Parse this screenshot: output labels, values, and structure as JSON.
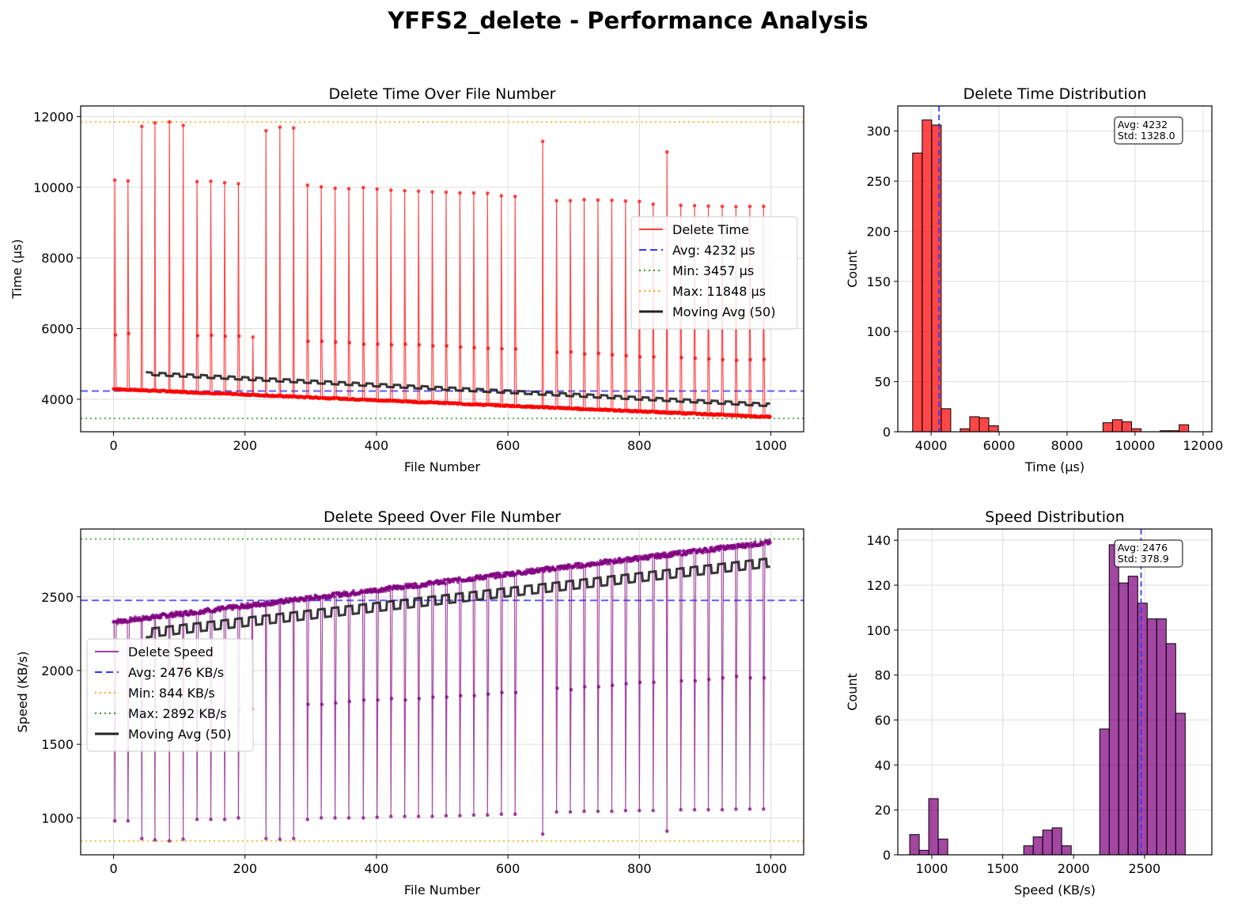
{
  "figure": {
    "title": "YFFS2_delete - Performance Analysis"
  },
  "chart_data": [
    {
      "type": "line",
      "title": "Delete Time Over File Number",
      "xlabel": "File Number",
      "ylabel": "Time (µs)",
      "xlim": [
        -50,
        1050
      ],
      "ylim": [
        3080,
        12300
      ],
      "xticks": [
        0,
        200,
        400,
        600,
        800,
        1000
      ],
      "yticks": [
        4000,
        6000,
        8000,
        10000,
        12000
      ],
      "grid": true,
      "legend_position": "center-right",
      "series": [
        {
          "name": "Delete Time",
          "color": "#ff0000",
          "baseline_start": 4290,
          "baseline_end": 3500,
          "spike_files": [
            2,
            22,
            43,
            63,
            85,
            106,
            127,
            148,
            169,
            190,
            211,
            232,
            253,
            274,
            295,
            316,
            337,
            358,
            380,
            401,
            422,
            443,
            464,
            485,
            506,
            527,
            548,
            569,
            590,
            611,
            653,
            674,
            695,
            716,
            737,
            758,
            779,
            800,
            821,
            842,
            863,
            884,
            905,
            926,
            947,
            968,
            989
          ],
          "spike_values": [
            10200,
            10180,
            11720,
            11820,
            11848,
            11750,
            10160,
            10170,
            10130,
            10100,
            0,
            11600,
            11700,
            11680,
            10060,
            10010,
            9970,
            9960,
            9990,
            9950,
            9920,
            9900,
            9890,
            9870,
            9860,
            9840,
            9840,
            9830,
            9760,
            9740,
            11300,
            9620,
            9620,
            9650,
            9640,
            9630,
            9610,
            9600,
            9520,
            11000,
            9490,
            9480,
            9470,
            9460,
            9450,
            9460,
            9460
          ],
          "secondary_values": [
            5820,
            5860,
            0,
            0,
            0,
            0,
            5800,
            5810,
            5780,
            5790,
            5760,
            0,
            0,
            0,
            5640,
            5640,
            5620,
            5600,
            5560,
            5560,
            5540,
            5560,
            5540,
            5510,
            5510,
            5480,
            5460,
            5440,
            5430,
            5420,
            0,
            5330,
            5340,
            5280,
            5300,
            5260,
            5230,
            5200,
            5200,
            0,
            5180,
            5160,
            5140,
            5120,
            5100,
            5120,
            5130
          ]
        },
        {
          "name": "Avg: 4232 µs",
          "value": 4232,
          "color": "#3333ff",
          "style": "dashed"
        },
        {
          "name": "Min: 3457 µs",
          "value": 3457,
          "color": "#2ca02c",
          "style": "dotted"
        },
        {
          "name": "Max: 11848 µs",
          "value": 11848,
          "color": "#ffa500",
          "style": "dotted"
        },
        {
          "name": "Moving Avg (50)",
          "color": "#222222",
          "start_file": 49,
          "start": 4720,
          "end": 3830
        }
      ]
    },
    {
      "type": "bar",
      "title": "Delete Time Distribution",
      "xlabel": "Time (µs)",
      "ylabel": "Count",
      "xlim": [
        3020,
        12260
      ],
      "ylim": [
        0,
        325
      ],
      "xticks": [
        4000,
        6000,
        8000,
        10000,
        12000
      ],
      "yticks": [
        0,
        50,
        100,
        150,
        200,
        250,
        300
      ],
      "bin_start": 3457,
      "bin_width": 280,
      "counts": [
        278,
        311,
        306,
        23,
        0,
        3,
        15,
        14,
        6,
        0,
        0,
        0,
        0,
        0,
        0,
        0,
        0,
        0,
        0,
        0,
        9,
        12,
        10,
        3,
        0,
        0,
        1,
        1,
        7
      ],
      "color": "#ff0000",
      "avg_line": 4232,
      "annotation": [
        "Avg: 4232",
        "Std: 1328.0"
      ]
    },
    {
      "type": "line",
      "title": "Delete Speed Over File Number",
      "xlabel": "File Number",
      "ylabel": "Speed (KB/s)",
      "xlim": [
        -50,
        1050
      ],
      "ylim": [
        750,
        2960
      ],
      "xticks": [
        0,
        200,
        400,
        600,
        800,
        1000
      ],
      "yticks": [
        1000,
        1500,
        2000,
        2500
      ],
      "grid": true,
      "legend_position": "center-left",
      "series": [
        {
          "name": "Delete Speed",
          "color": "#800080",
          "baseline_start": 2330,
          "baseline_end": 2870,
          "dip_values": [
            980,
            980,
            860,
            850,
            844,
            855,
            990,
            990,
            990,
            1000,
            1740,
            860,
            855,
            860,
            990,
            1000,
            1000,
            1000,
            1000,
            1005,
            1010,
            1010,
            1010,
            1010,
            1015,
            1015,
            1020,
            1020,
            1025,
            1025,
            890,
            1040,
            1040,
            1045,
            1045,
            1045,
            1050,
            1050,
            1050,
            910,
            1055,
            1055,
            1055,
            1055,
            1060,
            1060,
            1060
          ],
          "secondary_values": [
            1710,
            1710,
            0,
            0,
            0,
            0,
            1720,
            1720,
            1730,
            1730,
            0,
            0,
            0,
            0,
            1770,
            1770,
            1780,
            1790,
            1800,
            1800,
            1810,
            1800,
            1810,
            1820,
            1820,
            1830,
            1830,
            1840,
            1850,
            1850,
            0,
            1880,
            1870,
            1890,
            1890,
            1900,
            1910,
            1920,
            1920,
            0,
            1930,
            1930,
            1940,
            1950,
            1960,
            1950,
            1950
          ]
        },
        {
          "name": "Avg: 2476 KB/s",
          "value": 2476,
          "color": "#3333ff",
          "style": "dashed"
        },
        {
          "name": "Min: 844 KB/s",
          "value": 844,
          "color": "#ffa500",
          "style": "dotted"
        },
        {
          "name": "Max: 2892 KB/s",
          "value": 2892,
          "color": "#2ca02c",
          "style": "dotted"
        },
        {
          "name": "Moving Avg (50)",
          "color": "#222222",
          "start_file": 49,
          "start": 2260,
          "end": 2740
        }
      ]
    },
    {
      "type": "bar",
      "title": "Speed Distribution",
      "xlabel": "Speed (KB/s)",
      "ylabel": "Count",
      "xlim": [
        760,
        2975
      ],
      "ylim": [
        0,
        145
      ],
      "xticks": [
        1000,
        1500,
        2000,
        2500
      ],
      "yticks": [
        0,
        20,
        40,
        60,
        80,
        100,
        120,
        140
      ],
      "bin_start": 844,
      "bin_width": 67,
      "counts": [
        9,
        2,
        25,
        7,
        0,
        0,
        0,
        0,
        0,
        0,
        0,
        0,
        4,
        8,
        11,
        12,
        4,
        0,
        0,
        0,
        56,
        138,
        121,
        124,
        112,
        105,
        105,
        94,
        63
      ],
      "color": "#800080",
      "avg_line": 2476,
      "annotation": [
        "Avg: 2476",
        "Std: 378.9"
      ]
    }
  ]
}
